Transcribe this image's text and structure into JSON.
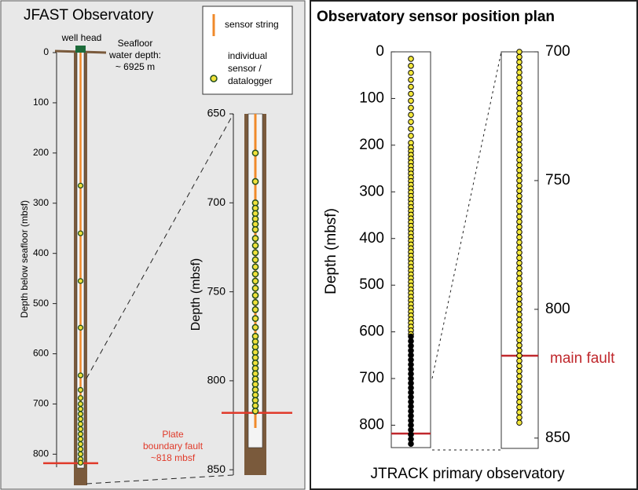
{
  "left": {
    "title": "JFAST Observatory",
    "legend_string": "sensor string",
    "legend_sensor": [
      "individual",
      "sensor /",
      "datalogger"
    ],
    "well_head": "well head",
    "seafloor": [
      "Seafloor",
      "water depth:",
      "~ 6925 m"
    ],
    "fault": [
      "Plate",
      "boundary fault",
      "~818 mbsf"
    ]
  },
  "right": {
    "title": "Observatory sensor position plan",
    "fault": "main fault",
    "caption": "JTRACK primary observatory"
  },
  "chart_data": [
    {
      "type": "scatter",
      "ylabel": "Depth below seafloor (mbsf)",
      "ylim": [
        0,
        826
      ],
      "yticks": [
        0,
        100,
        200,
        300,
        400,
        500,
        600,
        700,
        800
      ],
      "fault": 818,
      "series": [
        {
          "color": "#f1e23a",
          "values": [
            265,
            360,
            455,
            548,
            643,
            672,
            688,
            700,
            710,
            720,
            730,
            740,
            750,
            760,
            770,
            780,
            790,
            800,
            810,
            817
          ]
        }
      ]
    },
    {
      "type": "scatter",
      "ylabel": "Depth (mbsf)",
      "ylim": [
        650,
        853
      ],
      "yticks": [
        650,
        700,
        750,
        800,
        850
      ],
      "fault": 818,
      "series": [
        {
          "color": "#f1e23a",
          "values": [
            672,
            688,
            700,
            703,
            706,
            709,
            712,
            715,
            720,
            724,
            728,
            732,
            736,
            740,
            744,
            748,
            752,
            756,
            760,
            765,
            770,
            775,
            778,
            781,
            784,
            787,
            790,
            793,
            796,
            799,
            802,
            805,
            808,
            811,
            814,
            817
          ]
        }
      ]
    },
    {
      "type": "scatter",
      "ylabel": "Depth (mbsf)",
      "ylim": [
        0,
        848
      ],
      "yticks": [
        0,
        100,
        200,
        300,
        400,
        500,
        600,
        700,
        800
      ],
      "fault": 818,
      "series": [
        {
          "color": "#f4e83c",
          "values": [
            15,
            30,
            45,
            60,
            75,
            90,
            105,
            120,
            135,
            150,
            165,
            180,
            195,
            205,
            213,
            221,
            229,
            237,
            245,
            253,
            261,
            269,
            277,
            285,
            293,
            301,
            309,
            317,
            325,
            333,
            341,
            349,
            357,
            365,
            373,
            381,
            389,
            397,
            405,
            413,
            421,
            429,
            437,
            445,
            453,
            461,
            469,
            477,
            485,
            493,
            501,
            509,
            517,
            525,
            533,
            541,
            549,
            557,
            565,
            573,
            581,
            589,
            597,
            605
          ]
        },
        {
          "color": "#000000",
          "values": [
            610,
            620,
            630,
            640,
            650,
            660,
            670,
            680,
            690,
            700,
            710,
            720,
            730,
            740,
            750,
            760,
            770,
            780,
            790,
            800,
            810,
            820,
            830,
            840
          ]
        }
      ]
    },
    {
      "type": "scatter",
      "ylim": [
        700,
        854
      ],
      "yticks": [
        700,
        750,
        800,
        850
      ],
      "fault": 818,
      "series": [
        {
          "color": "#f4e83c",
          "values": [
            700,
            702,
            704,
            706,
            708,
            710,
            712,
            714,
            716,
            718,
            720,
            722,
            724,
            726,
            728,
            730,
            732,
            734,
            736,
            738,
            740,
            742,
            744,
            746,
            748,
            750,
            752,
            754,
            756,
            758,
            760,
            762,
            764,
            766,
            768,
            770,
            772,
            774,
            776,
            778,
            780,
            782,
            784,
            786,
            788,
            790,
            792,
            794,
            796,
            798,
            800,
            802,
            804,
            806,
            808,
            810,
            812,
            814,
            816,
            818,
            820,
            822,
            824,
            826,
            828,
            830,
            832,
            834,
            836,
            838,
            840,
            842,
            844
          ]
        }
      ]
    }
  ]
}
